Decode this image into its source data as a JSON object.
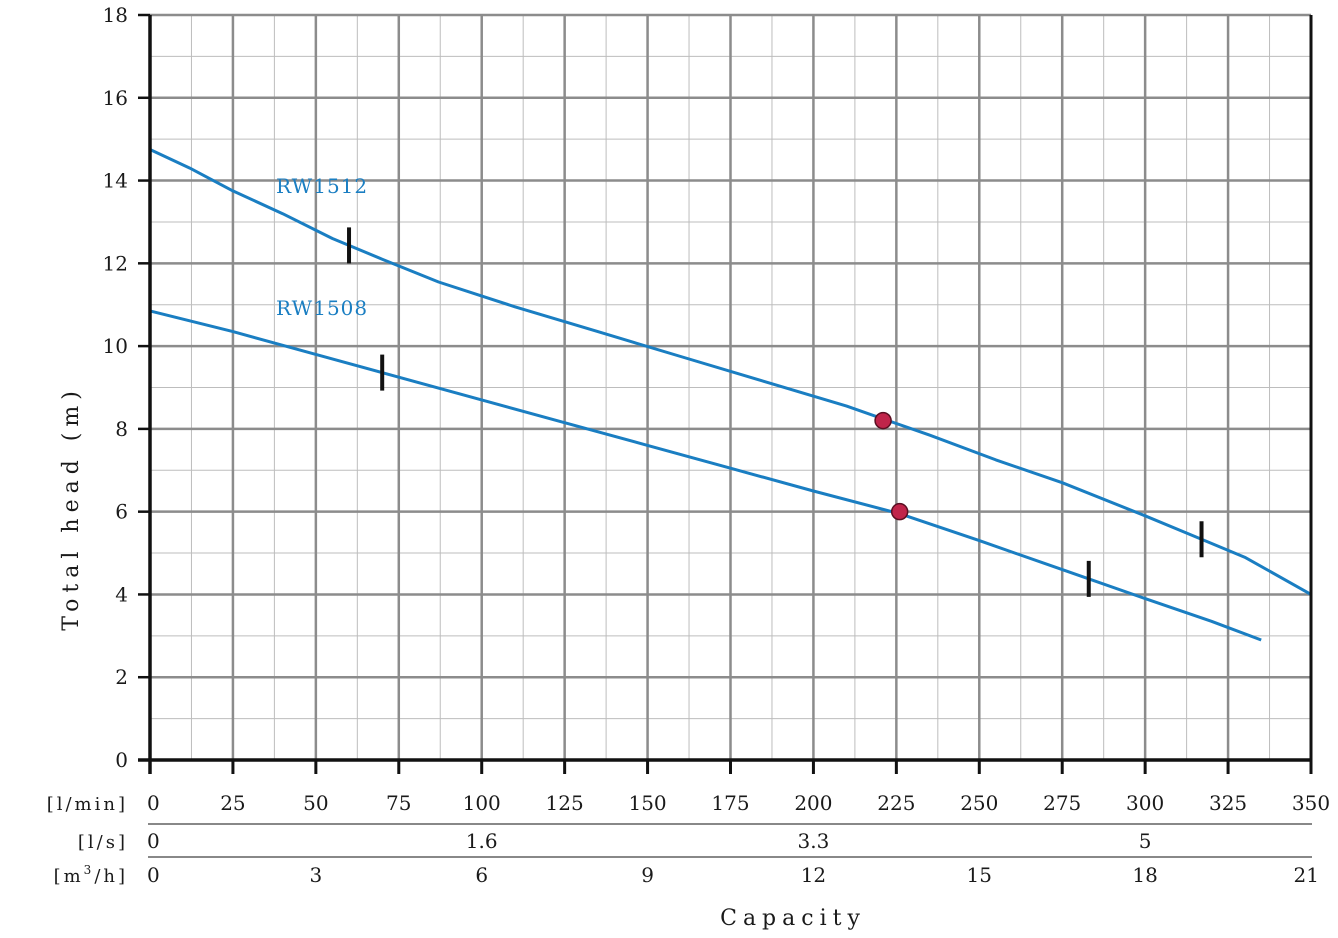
{
  "chart_data": {
    "type": "line",
    "ylabel": "Total head (m)",
    "xlabel": "Capacity",
    "xlim": [
      0,
      350
    ],
    "ylim": [
      0,
      18
    ],
    "y_ticks": [
      0,
      2,
      4,
      6,
      8,
      10,
      12,
      14,
      16,
      18
    ],
    "x_scales": [
      {
        "unit": "[l/min]",
        "ticks": [
          "0",
          "25",
          "50",
          "75",
          "100",
          "125",
          "150",
          "175",
          "200",
          "225",
          "250",
          "275",
          "300",
          "325",
          "350"
        ],
        "values": [
          0,
          25,
          50,
          75,
          100,
          125,
          150,
          175,
          200,
          225,
          250,
          275,
          300,
          325,
          350
        ]
      },
      {
        "unit": "[l/s]",
        "ticks": [
          "0",
          "1.6",
          "3.3",
          "5"
        ],
        "values": [
          0,
          100,
          200,
          300
        ]
      },
      {
        "unit": "[m³/h]",
        "ticks": [
          "0",
          "3",
          "6",
          "9",
          "12",
          "15",
          "18",
          "21"
        ],
        "values": [
          0,
          50,
          100,
          150,
          200,
          250,
          300,
          350
        ]
      }
    ],
    "grid": true,
    "series": [
      {
        "name": "RW1512",
        "color": "#1a7ec2",
        "x": [
          0,
          12,
          25,
          40,
          55,
          70,
          87,
          110,
          135,
          160,
          185,
          210,
          235,
          255,
          275,
          300,
          315,
          330,
          350
        ],
        "y": [
          14.75,
          14.3,
          13.75,
          13.2,
          12.6,
          12.1,
          11.55,
          10.95,
          10.35,
          9.75,
          9.15,
          8.55,
          7.85,
          7.25,
          6.7,
          5.9,
          5.4,
          4.9,
          4.0
        ],
        "label_x": 38,
        "label_y": 13.7,
        "range_markers": [
          60,
          317
        ],
        "duty_point": {
          "x": 221,
          "y": 8.2
        }
      },
      {
        "name": "RW1508",
        "color": "#1a7ec2",
        "x": [
          0,
          25,
          50,
          75,
          100,
          125,
          150,
          175,
          200,
          226,
          250,
          275,
          300,
          320,
          335
        ],
        "y": [
          10.85,
          10.35,
          9.8,
          9.25,
          8.7,
          8.15,
          7.6,
          7.05,
          6.5,
          5.95,
          5.3,
          4.6,
          3.9,
          3.35,
          2.9
        ],
        "label_x": 38,
        "label_y": 10.75,
        "range_markers": [
          70,
          283
        ],
        "duty_point": {
          "x": 226,
          "y": 6.0
        }
      }
    ],
    "duty_point_color": "#c0244a"
  }
}
